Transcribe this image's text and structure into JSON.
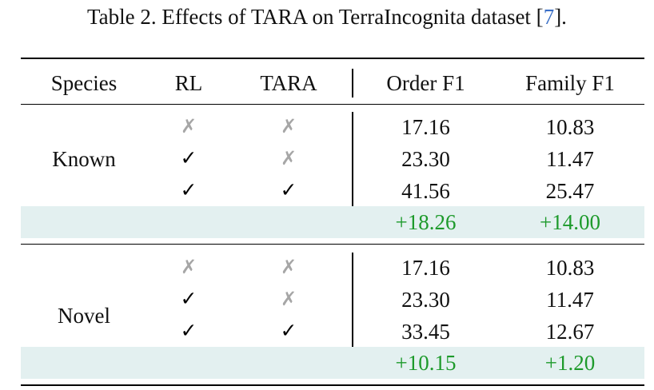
{
  "caption": {
    "text": "Table 2. Effects of TARA on TerraIncognita dataset [",
    "cite": "7",
    "close": "]."
  },
  "table": {
    "headers": [
      "Species",
      "RL",
      "TARA",
      "Order F1",
      "Family F1"
    ],
    "groups": [
      {
        "species": "Known",
        "rows": [
          {
            "rl": "✗",
            "tara": "✗",
            "order_f1": "17.16",
            "family_f1": "10.83"
          },
          {
            "rl": "✓",
            "tara": "✗",
            "order_f1": "23.30",
            "family_f1": "11.47"
          },
          {
            "rl": "✓",
            "tara": "✓",
            "order_f1": "41.56",
            "family_f1": "25.47"
          }
        ],
        "gain": {
          "order_f1": "+18.26",
          "family_f1": "+14.00"
        }
      },
      {
        "species": "Novel",
        "rows": [
          {
            "rl": "✗",
            "tara": "✗",
            "order_f1": "17.16",
            "family_f1": "10.83"
          },
          {
            "rl": "✓",
            "tara": "✗",
            "order_f1": "23.30",
            "family_f1": "11.47"
          },
          {
            "rl": "✓",
            "tara": "✓",
            "order_f1": "33.45",
            "family_f1": "12.67"
          }
        ],
        "gain": {
          "order_f1": "+10.15",
          "family_f1": "+1.20"
        }
      }
    ]
  },
  "colors": {
    "gain_text": "#1d9a2b",
    "gain_band": "#e3f0f0",
    "cross_mark": "#a6a6a6",
    "citation": "#3a6fc7"
  }
}
